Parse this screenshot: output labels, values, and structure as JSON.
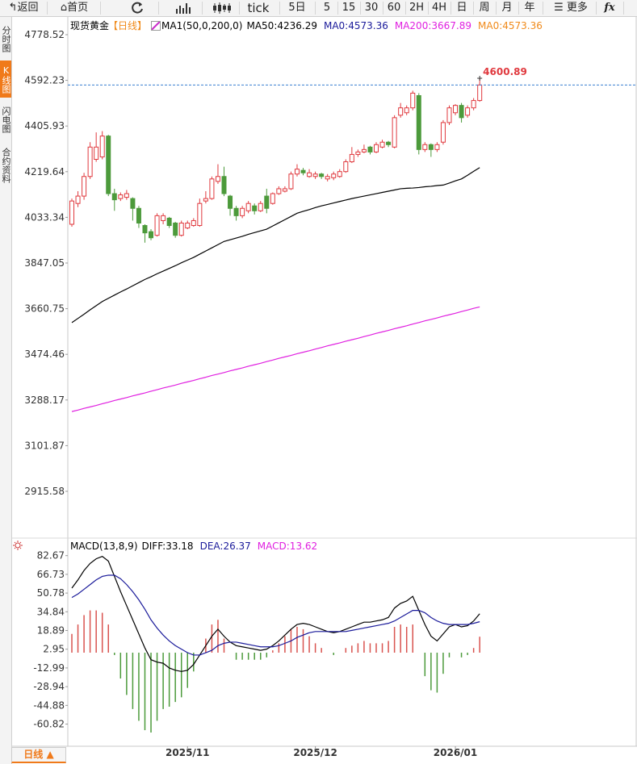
{
  "toolbar": [
    "返回",
    "首页",
    "tick",
    "5日",
    "5",
    "15",
    "30",
    "60",
    "2H",
    "4H",
    "日",
    "周",
    "月",
    "年",
    "更多",
    "fx"
  ],
  "sidebar": [
    "分时图",
    "K线图",
    "闪电图",
    "合约资料"
  ],
  "bottom_tab": "日线 ▲",
  "chart_data": [
    {
      "type": "candlestick",
      "title": "现货黄金",
      "period": "【日线】",
      "indicator": "MA1(50,0,200,0)",
      "legend": [
        {
          "label": "MA50:4236.29",
          "color": "#000000"
        },
        {
          "label": "MA0:4573.36",
          "color": "#1a1a9a"
        },
        {
          "label": "MA200:3667.89",
          "color": "#e020e0"
        },
        {
          "label": "MA0:4573.36",
          "color": "#f08a1a"
        }
      ],
      "categories": [
        null,
        null,
        null,
        null,
        null,
        null,
        null,
        null,
        null,
        null,
        null,
        null,
        null,
        null,
        null,
        null,
        null,
        null,
        null,
        "2025/11",
        null,
        null,
        null,
        null,
        null,
        null,
        null,
        null,
        null,
        null,
        null,
        null,
        null,
        null,
        null,
        null,
        null,
        null,
        null,
        null,
        "2025/12",
        null,
        null,
        null,
        null,
        null,
        null,
        null,
        null,
        null,
        null,
        null,
        null,
        null,
        null,
        null,
        null,
        null,
        null,
        null,
        null,
        null,
        null,
        "2026/01",
        null,
        null,
        null,
        null
      ],
      "open": [
        4005,
        4090,
        4120,
        4200,
        4270,
        4280,
        4365,
        4130,
        4110,
        4115,
        4110,
        4070,
        4000,
        3975,
        3960,
        4020,
        4030,
        4010,
        3960,
        3990,
        4000,
        4000,
        4100,
        4110,
        4180,
        4200,
        4120,
        4070,
        4040,
        4060,
        4080,
        4060,
        4120,
        4090,
        4130,
        4140,
        4150,
        4210,
        4225,
        4200,
        4200,
        4210,
        4190,
        4195,
        4200,
        4220,
        4260,
        4290,
        4300,
        4320,
        4300,
        4320,
        4340,
        4320,
        4450,
        4460,
        4480,
        4530,
        4310,
        4330,
        4310,
        4340,
        4420,
        4460,
        4490,
        4450,
        4480,
        4510
      ],
      "close": [
        4100,
        4120,
        4200,
        4320,
        4320,
        4365,
        4130,
        4105,
        4125,
        4130,
        4070,
        4010,
        3970,
        3950,
        4040,
        4040,
        4000,
        3960,
        4010,
        4010,
        4020,
        4090,
        4110,
        4190,
        4200,
        4130,
        4070,
        4040,
        4070,
        4090,
        4060,
        4090,
        4070,
        4130,
        4150,
        4150,
        4210,
        4230,
        4215,
        4215,
        4210,
        4200,
        4200,
        4210,
        4220,
        4260,
        4290,
        4300,
        4310,
        4300,
        4330,
        4340,
        4330,
        4440,
        4480,
        4480,
        4540,
        4310,
        4330,
        4310,
        4330,
        4420,
        4480,
        4490,
        4440,
        4480,
        4510,
        4573.36
      ],
      "high": [
        4110,
        4140,
        4215,
        4340,
        4380,
        4385,
        4370,
        4150,
        4135,
        4145,
        4115,
        4080,
        4005,
        3985,
        4050,
        4050,
        4035,
        4015,
        4020,
        4020,
        4030,
        4110,
        4140,
        4200,
        4250,
        4240,
        4125,
        4080,
        4080,
        4100,
        4090,
        4100,
        4150,
        4135,
        4160,
        4160,
        4220,
        4250,
        4235,
        4230,
        4220,
        4215,
        4210,
        4220,
        4230,
        4270,
        4320,
        4310,
        4330,
        4325,
        4340,
        4350,
        4345,
        4450,
        4500,
        4490,
        4550,
        4540,
        4340,
        4335,
        4340,
        4430,
        4490,
        4495,
        4500,
        4490,
        4520,
        4600.89
      ],
      "low": [
        3995,
        4075,
        4105,
        4190,
        4260,
        4270,
        4120,
        4060,
        4100,
        4105,
        4020,
        3990,
        3930,
        3940,
        3955,
        4005,
        3990,
        3950,
        3955,
        3985,
        3995,
        3995,
        4090,
        4105,
        4170,
        4120,
        4040,
        4020,
        4030,
        4050,
        4045,
        4055,
        4050,
        4085,
        4125,
        4135,
        4145,
        4200,
        4205,
        4195,
        4190,
        4190,
        4180,
        4185,
        4195,
        4215,
        4255,
        4280,
        4295,
        4290,
        4295,
        4315,
        4320,
        4315,
        4440,
        4450,
        4470,
        4290,
        4300,
        4280,
        4300,
        4330,
        4410,
        4450,
        4420,
        4440,
        4470,
        4505
      ],
      "up_color": "#e0393e",
      "down_color": "#4c9a3b",
      "series": [
        {
          "color": "#000000",
          "values": [
            3604,
            3621,
            3638,
            3656,
            3673,
            3690,
            3703,
            3716,
            3729,
            3741,
            3754,
            3767,
            3780,
            3791,
            3803,
            3814,
            3825,
            3836,
            3848,
            3859,
            3870,
            3883,
            3896,
            3909,
            3922,
            3935,
            3942,
            3949,
            3956,
            3964,
            3971,
            3978,
            3985,
            3998,
            4011,
            4024,
            4037,
            4050,
            4058,
            4065,
            4073,
            4080,
            4086,
            4092,
            4098,
            4104,
            4110,
            4115,
            4120,
            4125,
            4130,
            4135,
            4140,
            4145,
            4150,
            4152,
            4153,
            4155,
            4158,
            4160,
            4163,
            4165,
            4173,
            4182,
            4190,
            4205,
            4221,
            4236.29
          ]
        },
        {
          "color": "#e020e0",
          "values": [
            3241,
            3247,
            3254,
            3260,
            3266,
            3273,
            3279,
            3286,
            3292,
            3298,
            3305,
            3311,
            3317,
            3324,
            3330,
            3337,
            3343,
            3349,
            3356,
            3362,
            3368,
            3375,
            3381,
            3388,
            3394,
            3400,
            3407,
            3413,
            3419,
            3426,
            3432,
            3438,
            3445,
            3451,
            3458,
            3464,
            3470,
            3477,
            3483,
            3489,
            3496,
            3502,
            3509,
            3515,
            3521,
            3528,
            3534,
            3540,
            3547,
            3553,
            3560,
            3566,
            3572,
            3579,
            3585,
            3591,
            3598,
            3604,
            3611,
            3617,
            3623,
            3630,
            3636,
            3642,
            3649,
            3655,
            3662,
            3667.89
          ]
        }
      ],
      "ylim": [
        2731.3,
        4854.2
      ],
      "yticks": [
        4778.52,
        4592.23,
        4405.93,
        4219.64,
        4033.34,
        3847.05,
        3660.75,
        3474.46,
        3288.17,
        3101.87,
        2915.58
      ]
    },
    {
      "type": "macd",
      "title": "MACD(13,8,9)",
      "legend": [
        {
          "label": "DIFF:33.18",
          "color": "#000000"
        },
        {
          "label": "DEA:26.37",
          "color": "#1a1a9a"
        },
        {
          "label": "MACD:13.62",
          "color": "#e020e0"
        }
      ],
      "series": [
        {
          "color": "#000000",
          "values": [
            55,
            62,
            70,
            76,
            80,
            82,
            78,
            65,
            52,
            40,
            28,
            16,
            4,
            -6,
            -8,
            -9,
            -13,
            -15,
            -16,
            -15,
            -10,
            -2,
            6,
            14,
            20,
            14,
            9,
            6,
            5,
            4,
            3,
            2,
            3,
            6,
            10,
            15,
            20,
            24,
            25,
            24,
            22,
            20,
            18,
            17,
            18,
            20,
            22,
            24,
            26,
            26,
            27,
            28,
            30,
            38,
            42,
            44,
            48,
            36,
            24,
            14,
            10,
            16,
            22,
            24,
            22,
            23,
            27,
            33.18
          ]
        },
        {
          "color": "#1a1a9a",
          "values": [
            47,
            50,
            54,
            58,
            62,
            65,
            66,
            66,
            63,
            58,
            52,
            45,
            37,
            28,
            21,
            15,
            10,
            6,
            3,
            0,
            -2,
            -2,
            0,
            2,
            6,
            8,
            9,
            9,
            8,
            7,
            6,
            5,
            5,
            5,
            6,
            8,
            10,
            13,
            15,
            17,
            18,
            18,
            18,
            18,
            18,
            18,
            19,
            20,
            21,
            22,
            23,
            24,
            25,
            27,
            30,
            33,
            36,
            36,
            34,
            30,
            27,
            25,
            24,
            24,
            24,
            24,
            25,
            26.37
          ]
        }
      ],
      "histogram": {
        "up_color": "#d9534f",
        "down_color": "#4c9a3b",
        "values": [
          16,
          24,
          32,
          36,
          36,
          34,
          24,
          -2,
          -22,
          -36,
          -48,
          -58,
          -66,
          -68,
          -58,
          -48,
          -46,
          -42,
          -38,
          -30,
          -16,
          0,
          12,
          24,
          28,
          12,
          0,
          -6,
          -6,
          -6,
          -6,
          -6,
          -4,
          2,
          8,
          14,
          20,
          22,
          20,
          14,
          8,
          4,
          0,
          -2,
          0,
          4,
          6,
          8,
          10,
          8,
          8,
          8,
          10,
          22,
          24,
          22,
          24,
          0,
          -20,
          -32,
          -34,
          -18,
          -4,
          0,
          -4,
          -2,
          4,
          13.62
        ]
      },
      "ylim": [
        -79.7,
        96.9
      ],
      "yticks": [
        82.67,
        66.73,
        50.78,
        34.84,
        18.89,
        2.95,
        -12.99,
        -28.94,
        -44.88,
        -60.82
      ]
    }
  ]
}
